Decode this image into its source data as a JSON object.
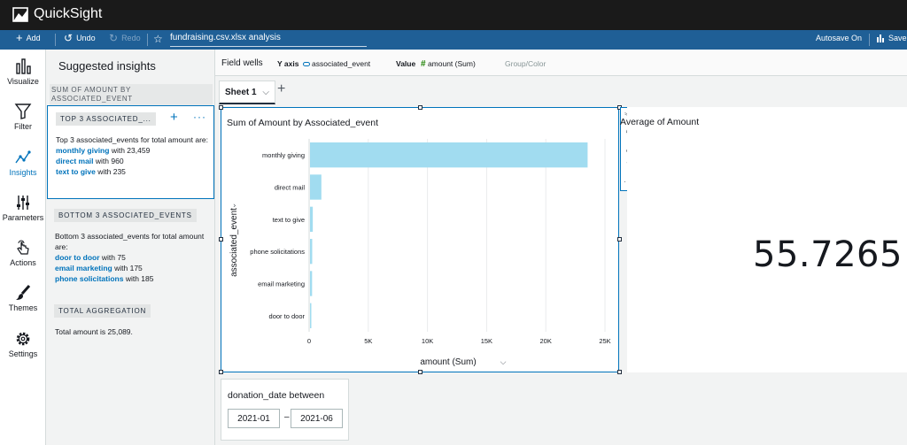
{
  "app": {
    "title": "QuickSight"
  },
  "toolbar": {
    "add": "Add",
    "undo": "Undo",
    "redo": "Redo",
    "analysis_name": "fundraising.csv.xlsx analysis",
    "autosave": "Autosave On",
    "save": "Save"
  },
  "leftnav": {
    "items": [
      {
        "label": "Visualize",
        "icon": "bar-chart-icon"
      },
      {
        "label": "Filter",
        "icon": "filter-icon"
      },
      {
        "label": "Insights",
        "icon": "insights-icon"
      },
      {
        "label": "Parameters",
        "icon": "sliders-icon"
      },
      {
        "label": "Actions",
        "icon": "pointer-icon"
      },
      {
        "label": "Themes",
        "icon": "paintbrush-icon"
      },
      {
        "label": "Settings",
        "icon": "gear-icon"
      }
    ]
  },
  "insights": {
    "title": "Suggested insights",
    "subtitle": "SUM OF AMOUNT BY ASSOCIATED_EVENT",
    "card1": {
      "tag": "TOP 3 ASSOCIATED_...",
      "intro": "Top 3 associated_events for total amount are:",
      "items": [
        {
          "name": "monthly giving",
          "value": "with 23,459"
        },
        {
          "name": "direct mail",
          "value": "with 960"
        },
        {
          "name": "text to give",
          "value": "with 235"
        }
      ]
    },
    "card2": {
      "tag": "BOTTOM 3 ASSOCIATED_EVENTS",
      "intro": "Bottom 3 associated_events for total amount are:",
      "items": [
        {
          "name": "door to door",
          "value": "with 75"
        },
        {
          "name": "email marketing",
          "value": "with 175"
        },
        {
          "name": "phone solicitations",
          "value": "with 185"
        }
      ]
    },
    "card3": {
      "tag": "TOTAL AGGREGATION",
      "text": "Total amount is 25,089."
    }
  },
  "fieldwells": {
    "label": "Field wells",
    "yaxis_label": "Y axis",
    "yaxis_field": "associated_event",
    "value_label": "Value",
    "value_field": "amount (Sum)",
    "group_label": "Group/Color"
  },
  "sheet": {
    "tab": "Sheet 1"
  },
  "visual": {
    "title": "Sum of Amount by Associated_event"
  },
  "chart_data": {
    "type": "bar",
    "orientation": "horizontal",
    "title": "Sum of Amount by Associated_event",
    "xlabel": "amount (Sum)",
    "ylabel": "associated_event",
    "categories": [
      "monthly giving",
      "direct mail",
      "text to give",
      "phone solicitations",
      "email marketing",
      "door to door"
    ],
    "values": [
      23459,
      960,
      235,
      185,
      175,
      75
    ],
    "xlim": [
      0,
      25000
    ],
    "xticks": [
      0,
      5000,
      10000,
      15000,
      20000,
      25000
    ],
    "xtick_labels": [
      "0",
      "5K",
      "10K",
      "15K",
      "20K",
      "25K"
    ],
    "grid": true,
    "bar_color": "#a1dcf0"
  },
  "kpi": {
    "title": "Average of Amount",
    "value": "55.7265"
  },
  "filter": {
    "label": "donation_date between",
    "from": "2021-01",
    "to": "2021-06",
    "dash": "–"
  },
  "colors": {
    "accent": "#0073bb",
    "toolbar": "#1f5f96",
    "topbar": "#1a1a1a"
  }
}
